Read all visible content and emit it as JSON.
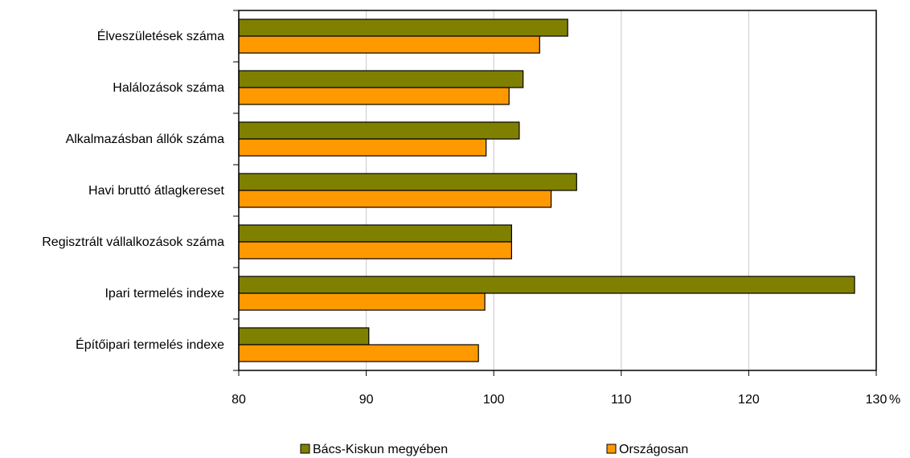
{
  "chart_data": {
    "type": "bar",
    "orientation": "horizontal",
    "categories": [
      "Élveszületések száma",
      "Halálozások száma",
      "Alkalmazásban állók száma",
      "Havi bruttó átlagkereset",
      "Regisztrált vállalkozások száma",
      "Ipari termelés indexe",
      "Építőipari termelés indexe"
    ],
    "series": [
      {
        "name": "Bács-Kiskun megyében",
        "color": "#808000",
        "values": [
          105.8,
          102.3,
          102.0,
          106.5,
          101.4,
          128.3,
          90.2
        ]
      },
      {
        "name": "Országosan",
        "color": "#FF9900",
        "values": [
          103.6,
          101.2,
          99.4,
          104.5,
          101.4,
          99.3,
          98.8
        ]
      }
    ],
    "xlim": [
      80,
      130
    ],
    "xticks": [
      "80",
      "90",
      "100",
      "110",
      "120",
      "130"
    ],
    "unit": "%",
    "grid": "vertical",
    "legend_position": "bottom"
  }
}
